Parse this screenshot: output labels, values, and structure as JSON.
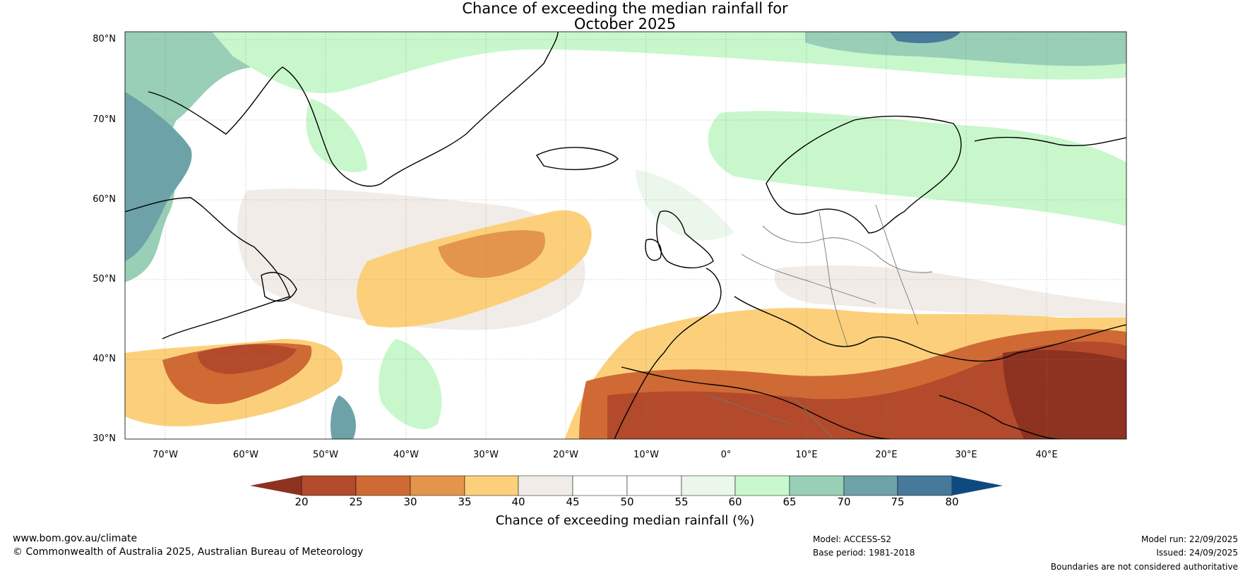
{
  "title": {
    "line1": "Chance of exceeding the median rainfall for",
    "line2": "October 2025"
  },
  "latitudes": [
    "80°N",
    "70°N",
    "60°N",
    "50°N",
    "40°N",
    "30°N"
  ],
  "longitudes": [
    "70°W",
    "60°W",
    "50°W",
    "40°W",
    "30°W",
    "20°W",
    "10°W",
    "0°",
    "10°E",
    "20°E",
    "30°E",
    "40°E"
  ],
  "colorbar": {
    "label": "Chance of exceeding median rainfall (%)",
    "ticks": [
      "20",
      "25",
      "30",
      "35",
      "40",
      "45",
      "50",
      "55",
      "60",
      "65",
      "70",
      "75",
      "80"
    ],
    "colors": [
      "#8d3220",
      "#b24a2b",
      "#cf6a35",
      "#e2954b",
      "#fcd07a",
      "#f1ece7",
      "#ffffff",
      "#ffffff",
      "#eaf7ea",
      "#c8f7cb",
      "#98cfb6",
      "#6da3a8",
      "#46799a",
      "#0e4a80"
    ]
  },
  "footer": {
    "url": "www.bom.gov.au/climate",
    "copyright": "© Commonwealth of Australia 2025, Australian Bureau of Meteorology",
    "model": "Model: ACCESS-S2",
    "base_period": "Base period: 1981-2018",
    "model_run": "Model run: 22/09/2025",
    "issued": "Issued: 24/09/2025",
    "disclaimer": "Boundaries are not considered authoritative"
  }
}
